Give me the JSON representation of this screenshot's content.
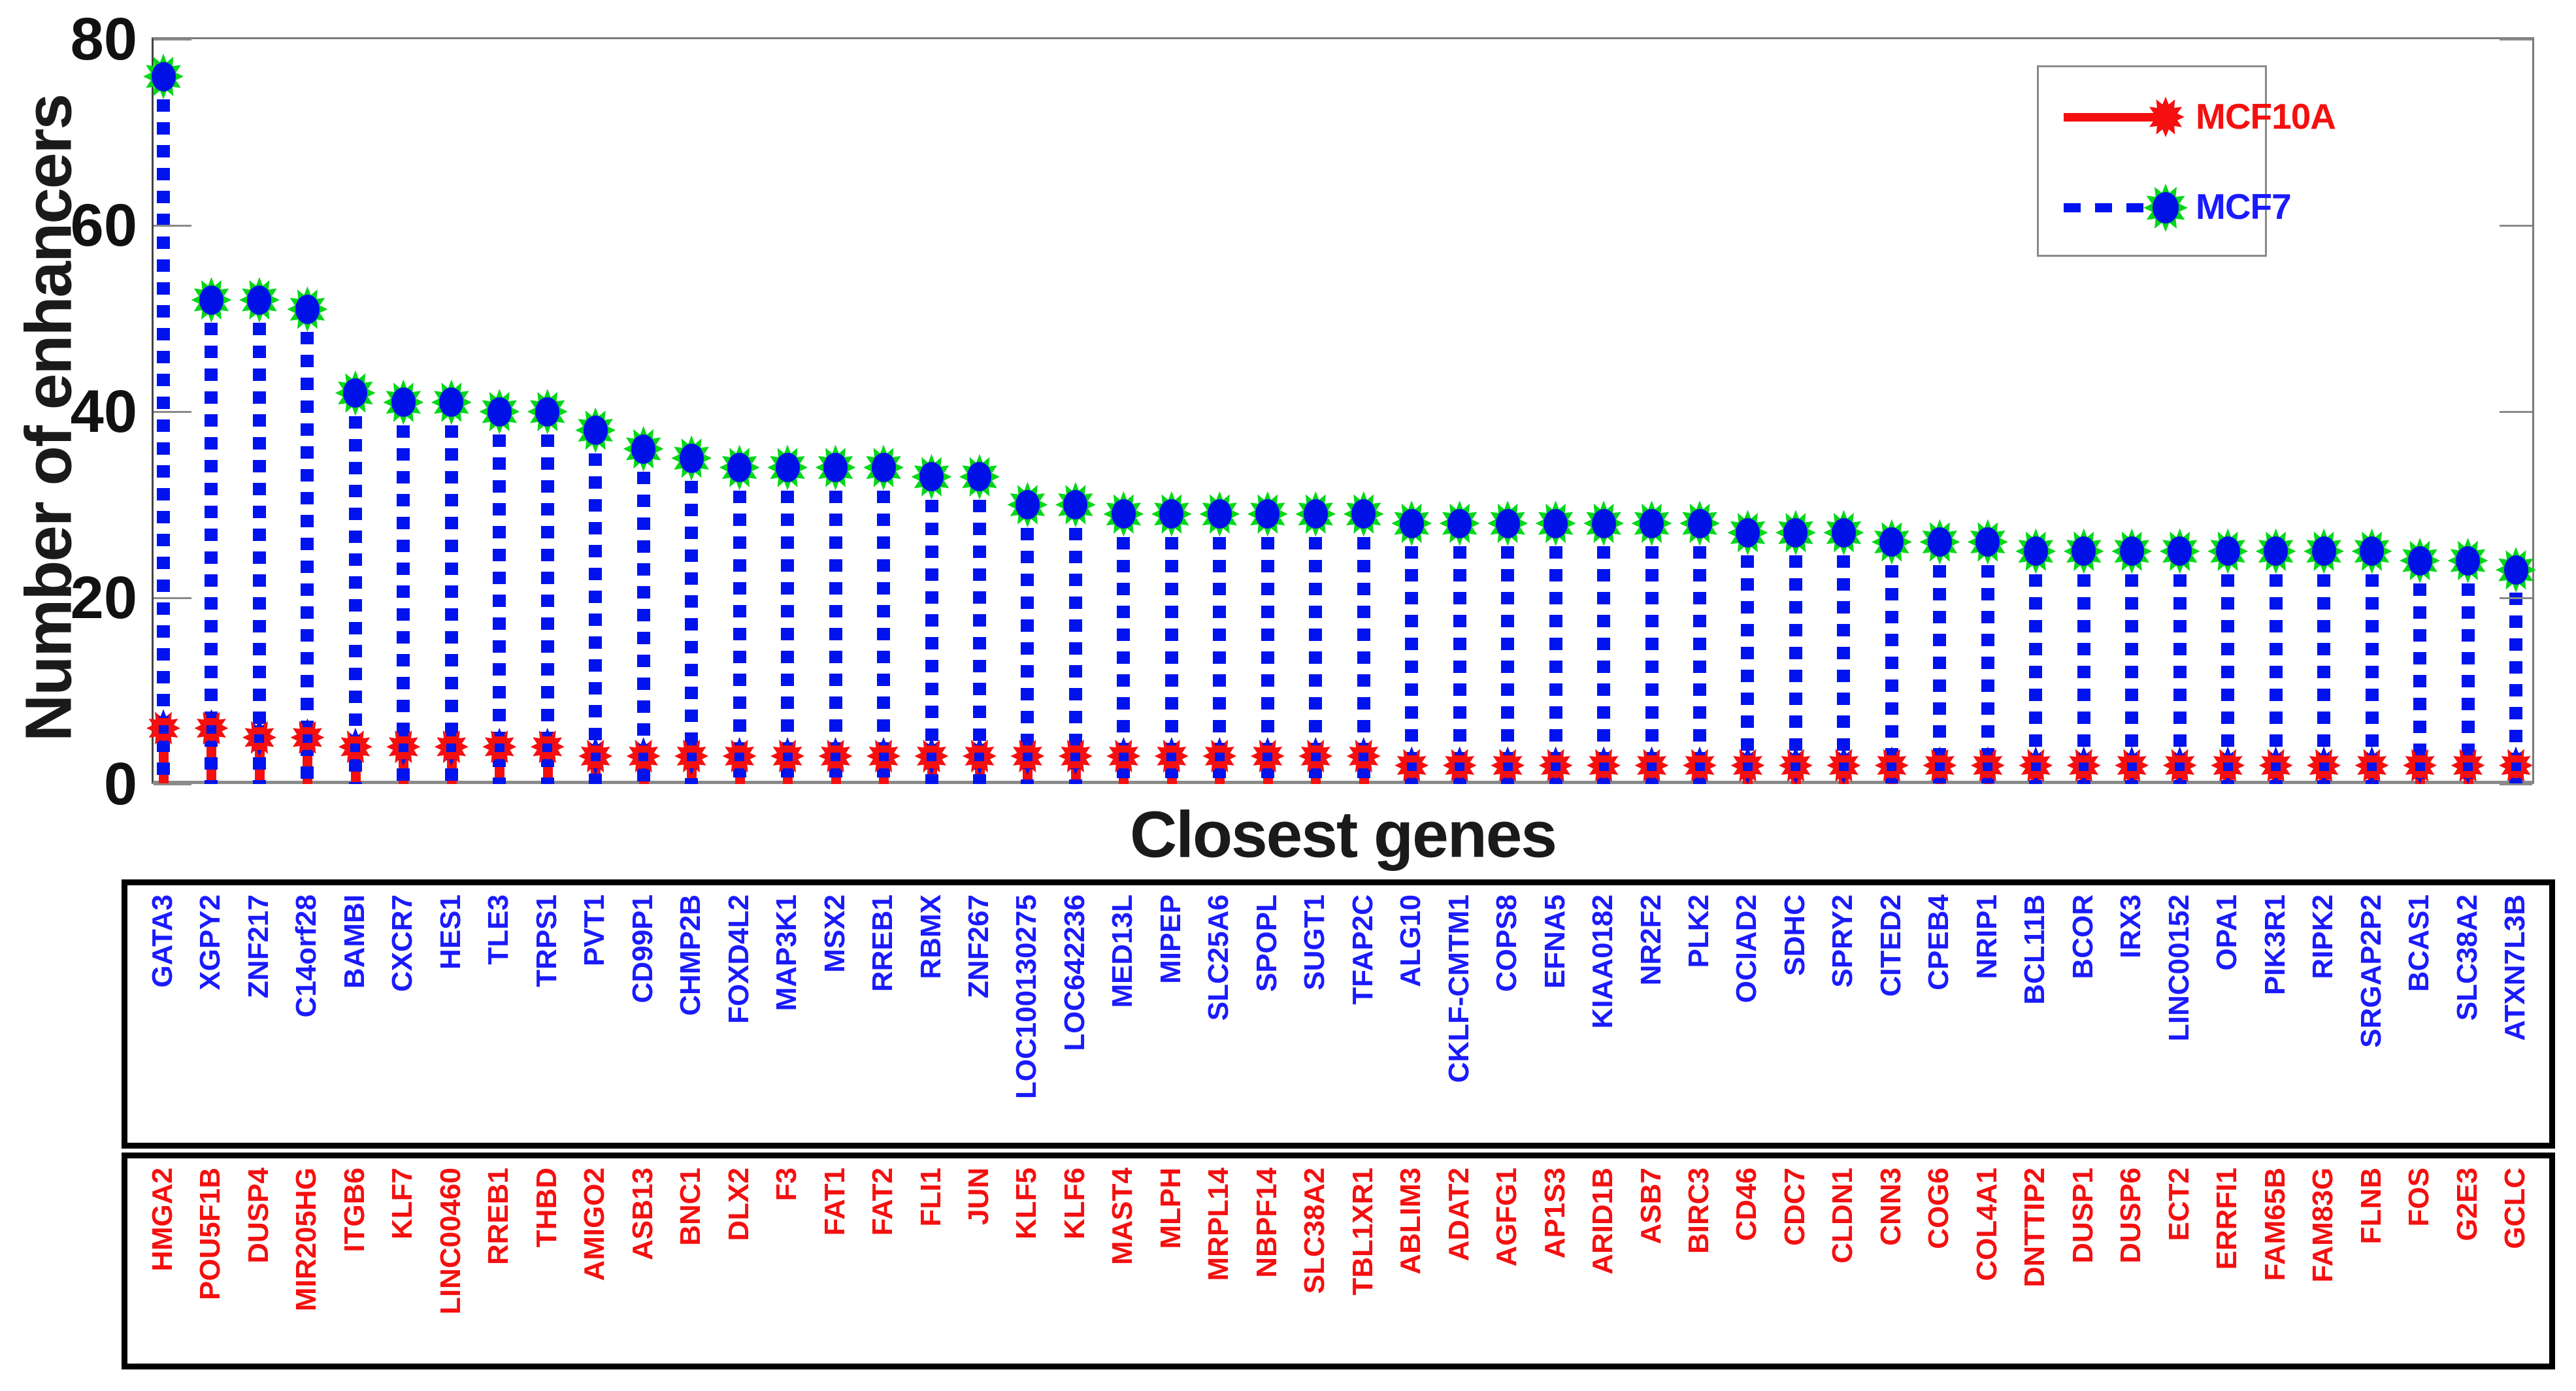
{
  "figure": {
    "y_axis_label": "Number of enhancers",
    "x_axis_label": "Closest genes",
    "y_ticks": [
      "0",
      "20",
      "40",
      "60",
      "80"
    ],
    "y_max": 80
  },
  "legend": {
    "items": [
      {
        "label": "MCF10A",
        "color": "#f50f0f",
        "line_style": "solid",
        "marker": "red-star"
      },
      {
        "label": "MCF7",
        "color": "#1a1aff",
        "line_style": "dashed",
        "marker": "green-ring-blue-dot"
      }
    ]
  },
  "colors": {
    "mcf10a_red": "#f50f0f",
    "mcf7_blue": "#0013ee",
    "mcf7_marker_green": "#00d816",
    "axis_text": "#1a1a1a"
  },
  "chart_data": {
    "type": "stem",
    "title": "",
    "xlabel": "Closest genes",
    "ylabel": "Number of enhancers",
    "ylim": [
      0,
      80
    ],
    "grid": false,
    "legend_position": "top-right",
    "series": [
      {
        "name": "MCF7",
        "marker": "green-ring-blue-dot",
        "genes": [
          "GATA3",
          "XGPY2",
          "ZNF217",
          "C14orf28",
          "BAMBI",
          "CXCR7",
          "HES1",
          "TLE3",
          "TRPS1",
          "PVT1",
          "CD99P1",
          "CHMP2B",
          "FOXD4L2",
          "MAP3K1",
          "MSX2",
          "RREB1",
          "RBMX",
          "ZNF267",
          "LOC100130275",
          "LOC642236",
          "MED13L",
          "MIPEP",
          "SLC25A6",
          "SPOPL",
          "SUGT1",
          "TFAP2C",
          "ALG10",
          "CKLF-CMTM1",
          "COPS8",
          "EFNA5",
          "KIAA0182",
          "NR2F2",
          "PLK2",
          "OCIAD2",
          "SDHC",
          "SPRY2",
          "CITED2",
          "CPEB4",
          "NRIP1",
          "BCL11B",
          "BCOR",
          "IRX3",
          "LINC00152",
          "OPA1",
          "PIK3R1",
          "RIPK2",
          "SRGAP2P2",
          "BCAS1",
          "SLC38A2",
          "ATXN7L3B"
        ],
        "values": [
          76,
          52,
          52,
          51,
          42,
          41,
          41,
          40,
          40,
          38,
          36,
          35,
          34,
          34,
          34,
          34,
          33,
          33,
          30,
          30,
          29,
          29,
          29,
          29,
          29,
          29,
          28,
          28,
          28,
          28,
          28,
          28,
          28,
          27,
          27,
          27,
          26,
          26,
          26,
          25,
          25,
          25,
          25,
          25,
          25,
          25,
          25,
          24,
          24,
          23
        ]
      },
      {
        "name": "MCF10A",
        "marker": "red-star",
        "genes": [
          "HMGA2",
          "POU5F1B",
          "DUSP4",
          "MIR205HG",
          "ITGB6",
          "KLF7",
          "LINC00460",
          "RREB1",
          "THBD",
          "AMIGO2",
          "ASB13",
          "BNC1",
          "DLX2",
          "F3",
          "FAT1",
          "FAT2",
          "FLI1",
          "JUN",
          "KLF5",
          "KLF6",
          "MAST4",
          "MLPH",
          "MRPL14",
          "NBPF14",
          "SLC38A2",
          "TBL1XR1",
          "ABLIM3",
          "ADAT2",
          "AGFG1",
          "AP1S3",
          "ARID1B",
          "ASB7",
          "BIRC3",
          "CD46",
          "CDC7",
          "CLDN1",
          "CNN3",
          "COG6",
          "COL4A1",
          "DNTTIP2",
          "DUSP1",
          "DUSP6",
          "ECT2",
          "ERRFI1",
          "FAM65B",
          "FAM83G",
          "FLNB",
          "FOS",
          "G2E3",
          "GCLC"
        ],
        "values": [
          6,
          6,
          5,
          5,
          4,
          4,
          4,
          4,
          4,
          3,
          3,
          3,
          3,
          3,
          3,
          3,
          3,
          3,
          3,
          3,
          3,
          3,
          3,
          3,
          3,
          3,
          2,
          2,
          2,
          2,
          2,
          2,
          2,
          2,
          2,
          2,
          2,
          2,
          2,
          2,
          2,
          2,
          2,
          2,
          2,
          2,
          2,
          2,
          2,
          2
        ]
      }
    ]
  }
}
